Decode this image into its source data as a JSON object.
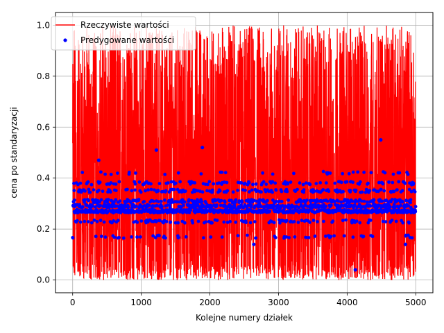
{
  "chart_data": {
    "type": "line",
    "title": "",
    "xlabel": "Kolejne numery działek",
    "ylabel": "cena po standaryzacji",
    "xlim": [
      -250,
      5250
    ],
    "ylim": [
      -0.05,
      1.05
    ],
    "x_ticks": [
      "0",
      "1000",
      "2000",
      "3000",
      "4000",
      "5000"
    ],
    "y_ticks": [
      "0.0",
      "0.2",
      "0.4",
      "0.6",
      "0.8",
      "1.0"
    ],
    "grid": true,
    "legend_position": "top-left",
    "n_points": 5000,
    "series": [
      {
        "name": "Rzeczywiste wartości",
        "kind": "line",
        "color": "#ff0000",
        "description_range": [
          0.0,
          1.0
        ],
        "sample_values": [
          0.45,
          0.02,
          0.9,
          0.12,
          0.63,
          0.05,
          0.88,
          0.3,
          0.74,
          0.01,
          0.97,
          0.2,
          0.55,
          0.08,
          0.82,
          0.4
        ]
      },
      {
        "name": "Predygowane wartości",
        "kind": "scatter",
        "color": "#0000ff",
        "levels": [
          0.27,
          0.29,
          0.31,
          0.35,
          0.38,
          0.23,
          0.17,
          0.42
        ],
        "outliers": [
          {
            "x": 1220,
            "y": 0.51
          },
          {
            "x": 1890,
            "y": 0.52
          },
          {
            "x": 4490,
            "y": 0.55
          },
          {
            "x": 4120,
            "y": 0.04
          },
          {
            "x": 380,
            "y": 0.47
          },
          {
            "x": 2640,
            "y": 0.14
          },
          {
            "x": 4850,
            "y": 0.14
          }
        ]
      }
    ]
  },
  "colors": {
    "line": "#ff0000",
    "marker": "#0000ff",
    "grid": "#b0b0b0"
  }
}
